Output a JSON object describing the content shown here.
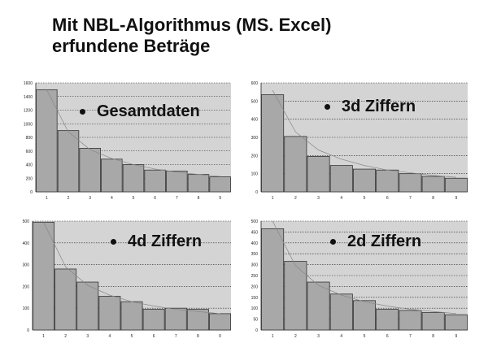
{
  "title": {
    "line1": "Mit NBL-Algorithmus (MS. Excel)",
    "line2": "erfundene Beträge"
  },
  "colors": {
    "plot_bg": "#d4d4d4",
    "bar_fill": "#a8a8a8",
    "bar_stroke": "#333333",
    "grid": "#222222",
    "trend": "#888888"
  },
  "chart_data": [
    {
      "type": "bar",
      "label": "Gesamtdaten",
      "categories": [
        "1",
        "2",
        "3",
        "4",
        "5",
        "6",
        "7",
        "8",
        "9"
      ],
      "values": [
        1500,
        900,
        640,
        480,
        400,
        320,
        305,
        255,
        220
      ],
      "trend": [
        1500,
        880,
        620,
        490,
        400,
        335,
        290,
        255,
        225
      ],
      "ylim": [
        0,
        1600
      ],
      "yticks": [
        0,
        200,
        400,
        600,
        800,
        1000,
        1200,
        1400,
        1600
      ],
      "grid": true
    },
    {
      "type": "bar",
      "label": "3d Ziffern",
      "categories": [
        "1",
        "2",
        "3",
        "4",
        "5",
        "6",
        "7",
        "8",
        "9"
      ],
      "values": [
        535,
        305,
        195,
        145,
        125,
        120,
        100,
        85,
        75
      ],
      "trend": [
        560,
        330,
        230,
        180,
        145,
        120,
        105,
        90,
        80
      ],
      "ylim": [
        0,
        600
      ],
      "yticks": [
        0,
        100,
        200,
        300,
        400,
        500,
        600
      ],
      "grid": true
    },
    {
      "type": "bar",
      "label": "4d Ziffern",
      "categories": [
        "1",
        "2",
        "3",
        "4",
        "5",
        "6",
        "7",
        "8",
        "9"
      ],
      "values": [
        495,
        280,
        220,
        155,
        130,
        95,
        100,
        95,
        75
      ],
      "trend": [
        495,
        290,
        205,
        160,
        130,
        110,
        95,
        85,
        75
      ],
      "ylim": [
        0,
        500
      ],
      "yticks": [
        0,
        100,
        200,
        300,
        400,
        500
      ],
      "grid": true
    },
    {
      "type": "bar",
      "label": "2d Ziffern",
      "categories": [
        "1",
        "2",
        "3",
        "4",
        "5",
        "6",
        "7",
        "8",
        "9"
      ],
      "values": [
        465,
        315,
        220,
        165,
        135,
        95,
        90,
        80,
        70
      ],
      "trend": [
        500,
        295,
        205,
        160,
        130,
        110,
        95,
        85,
        75
      ],
      "ylim": [
        0,
        500
      ],
      "yticks": [
        0,
        50,
        100,
        150,
        200,
        250,
        300,
        350,
        400,
        450,
        500
      ],
      "grid": true
    }
  ]
}
